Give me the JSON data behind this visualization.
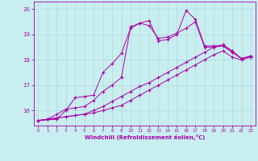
{
  "xlabel": "Windchill (Refroidissement éolien,°C)",
  "bg_color": "#c8eef0",
  "line_color": "#aa00aa",
  "grid_color": "#b0d8da",
  "xlim": [
    -0.5,
    23.5
  ],
  "ylim": [
    15.4,
    20.3
  ],
  "yticks": [
    16,
    17,
    18,
    19,
    20
  ],
  "xticks": [
    0,
    1,
    2,
    3,
    4,
    5,
    6,
    7,
    8,
    9,
    10,
    11,
    12,
    13,
    14,
    15,
    16,
    17,
    18,
    19,
    20,
    21,
    22,
    23
  ],
  "line1_x": [
    0,
    1,
    2,
    3,
    4,
    5,
    6,
    7,
    8,
    9,
    10,
    11,
    12,
    13,
    14,
    15,
    16,
    17,
    18,
    19,
    20,
    21,
    22,
    23
  ],
  "line1_y": [
    15.6,
    15.65,
    15.7,
    15.75,
    15.8,
    15.85,
    15.9,
    16.0,
    16.1,
    16.2,
    16.4,
    16.6,
    16.8,
    17.0,
    17.2,
    17.4,
    17.6,
    17.8,
    18.0,
    18.2,
    18.35,
    18.1,
    18.0,
    18.1
  ],
  "line2_x": [
    0,
    1,
    2,
    3,
    4,
    5,
    6,
    7,
    8,
    9,
    10,
    11,
    12,
    13,
    14,
    15,
    16,
    17,
    18,
    19,
    20,
    21,
    22,
    23
  ],
  "line2_y": [
    15.6,
    15.65,
    15.7,
    15.75,
    15.8,
    15.85,
    16.0,
    16.15,
    16.35,
    16.55,
    16.75,
    16.95,
    17.1,
    17.3,
    17.5,
    17.7,
    17.9,
    18.1,
    18.3,
    18.5,
    18.6,
    18.35,
    18.05,
    18.15
  ],
  "line3_x": [
    0,
    2,
    3,
    4,
    5,
    6,
    7,
    8,
    9,
    10,
    11,
    12,
    13,
    14,
    15,
    16,
    17,
    18,
    19,
    20,
    21,
    22,
    23
  ],
  "line3_y": [
    15.6,
    15.65,
    16.0,
    16.5,
    16.55,
    16.6,
    17.5,
    17.85,
    18.25,
    19.25,
    19.45,
    19.35,
    18.85,
    18.9,
    19.05,
    19.25,
    19.5,
    18.5,
    18.5,
    18.55,
    18.3,
    18.05,
    18.15
  ],
  "line4_x": [
    0,
    1,
    2,
    3,
    4,
    5,
    6,
    7,
    8,
    9,
    10,
    11,
    12,
    13,
    14,
    15,
    16,
    17,
    18,
    19,
    20,
    21,
    22,
    23
  ],
  "line4_y": [
    15.6,
    15.65,
    15.85,
    16.05,
    16.1,
    16.15,
    16.4,
    16.75,
    17.0,
    17.3,
    19.3,
    19.45,
    19.55,
    18.75,
    18.8,
    19.0,
    19.95,
    19.6,
    18.55,
    18.55,
    18.55,
    18.3,
    18.05,
    18.15
  ]
}
